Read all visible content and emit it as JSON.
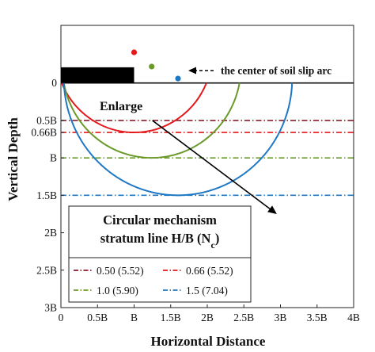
{
  "chart_data": {
    "type": "line",
    "xlabel": "Horizontal Distance",
    "ylabel": "Vertical Depth",
    "xlim": [
      0,
      4
    ],
    "ylim": [
      0,
      3
    ],
    "y_inverted": true,
    "y_extent_above_zero": 0.77,
    "grid": false,
    "x_ticks": [
      {
        "value": 0,
        "label": "0"
      },
      {
        "value": 0.5,
        "label": "0.5B"
      },
      {
        "value": 1,
        "label": "B"
      },
      {
        "value": 1.5,
        "label": "1.5B"
      },
      {
        "value": 2,
        "label": "2B"
      },
      {
        "value": 2.5,
        "label": "2.5B"
      },
      {
        "value": 3,
        "label": "3B"
      },
      {
        "value": 3.5,
        "label": "3.5B"
      },
      {
        "value": 4,
        "label": "4B"
      }
    ],
    "y_ticks": [
      {
        "value": 0,
        "label": "0"
      },
      {
        "value": 0.5,
        "label": "0.5B"
      },
      {
        "value": 0.66,
        "label": "0.66B"
      },
      {
        "value": 1,
        "label": "B"
      },
      {
        "value": 1.5,
        "label": "1.5B"
      },
      {
        "value": 2,
        "label": "2B"
      },
      {
        "value": 2.5,
        "label": "2.5B"
      },
      {
        "value": 3,
        "label": "3B"
      }
    ],
    "footing": {
      "x": [
        0,
        1
      ],
      "thickness": 0.21
    },
    "series": [
      {
        "name": "0.50 (5.52)",
        "stratum_depth": 0.5,
        "color": "#8b1a2b",
        "dash": "dash-dot"
      },
      {
        "name": "0.66 (5.52)",
        "stratum_depth": 0.66,
        "color": "#e3191b",
        "dash": "dash-dot",
        "arc_center": [
          1.0,
          -0.41
        ],
        "arc_radius": 1.07
      },
      {
        "name": "1.0 (5.90)",
        "stratum_depth": 1.0,
        "color": "#6b9a2b",
        "dash": "dash-dot",
        "arc_center": [
          1.24,
          -0.22
        ],
        "arc_radius": 1.22
      },
      {
        "name": "1.5 (7.04)",
        "stratum_depth": 1.5,
        "color": "#1f78c4",
        "dash": "dash-dot",
        "arc_center": [
          1.6,
          -0.06
        ],
        "arc_radius": 1.56
      }
    ],
    "annotations": [
      {
        "text": "the center of soil slip arc",
        "arrow": "left"
      },
      {
        "text": "Enlarge",
        "arrow_from": [
          1.25,
          0.5
        ],
        "arrow_to": [
          2.95,
          1.75
        ]
      }
    ],
    "legend": {
      "title_line1": "Circular mechanism",
      "title_line2": "stratum line H/B (N",
      "title_sub": "c",
      "title_close": ")",
      "placement": "lower-left",
      "columns": 2
    }
  }
}
